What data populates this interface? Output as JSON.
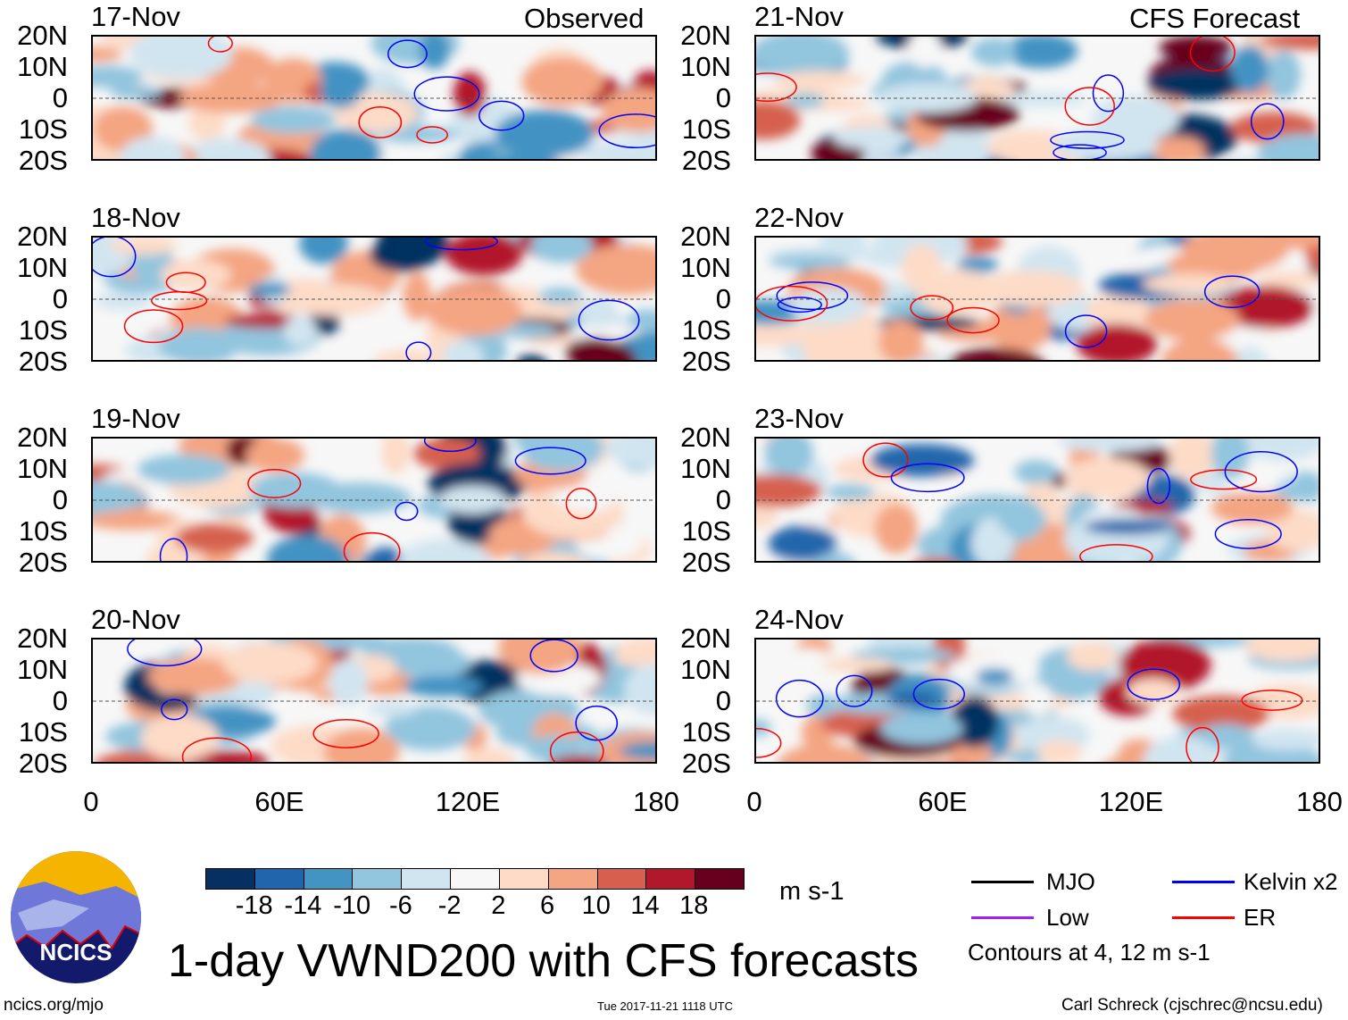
{
  "column_titles": {
    "left": "Observed",
    "right": "CFS Forecast"
  },
  "panels": [
    {
      "date": "17-Nov",
      "column": "left"
    },
    {
      "date": "18-Nov",
      "column": "left"
    },
    {
      "date": "19-Nov",
      "column": "left"
    },
    {
      "date": "20-Nov",
      "column": "left"
    },
    {
      "date": "21-Nov",
      "column": "right"
    },
    {
      "date": "22-Nov",
      "column": "right"
    },
    {
      "date": "23-Nov",
      "column": "right"
    },
    {
      "date": "24-Nov",
      "column": "right"
    }
  ],
  "lat_labels": [
    "20N",
    "10N",
    "0",
    "10S",
    "20S"
  ],
  "lon_labels": [
    "0",
    "60E",
    "120E",
    "180"
  ],
  "colorbar": {
    "colors": [
      "#053061",
      "#2166ac",
      "#4393c3",
      "#92c5de",
      "#d1e5f0",
      "#f7f7f7",
      "#fddbc7",
      "#f4a582",
      "#d6604d",
      "#b2182b",
      "#67001f"
    ],
    "labels": [
      "-18",
      "-14",
      "-10",
      "-6",
      "-2",
      "2",
      "6",
      "10",
      "14",
      "18"
    ],
    "units": "m s-1"
  },
  "legend": {
    "items": [
      {
        "label": "MJO",
        "color": "#000000"
      },
      {
        "label": "Kelvin x2",
        "color": "#0000ff"
      },
      {
        "label": "Low",
        "color": "#a020f0"
      },
      {
        "label": "ER",
        "color": "#ff0000"
      }
    ],
    "note": "Contours at 4, 12 m s-1"
  },
  "logo_text": "NCICS",
  "title": "1-day VWND200 with CFS forecasts",
  "footer": {
    "left": "ncics.org/mjo",
    "center": "Tue 2017-11-21 1118 UTC",
    "right": "Carl Schreck (cjschrec@ncsu.edu)"
  }
}
